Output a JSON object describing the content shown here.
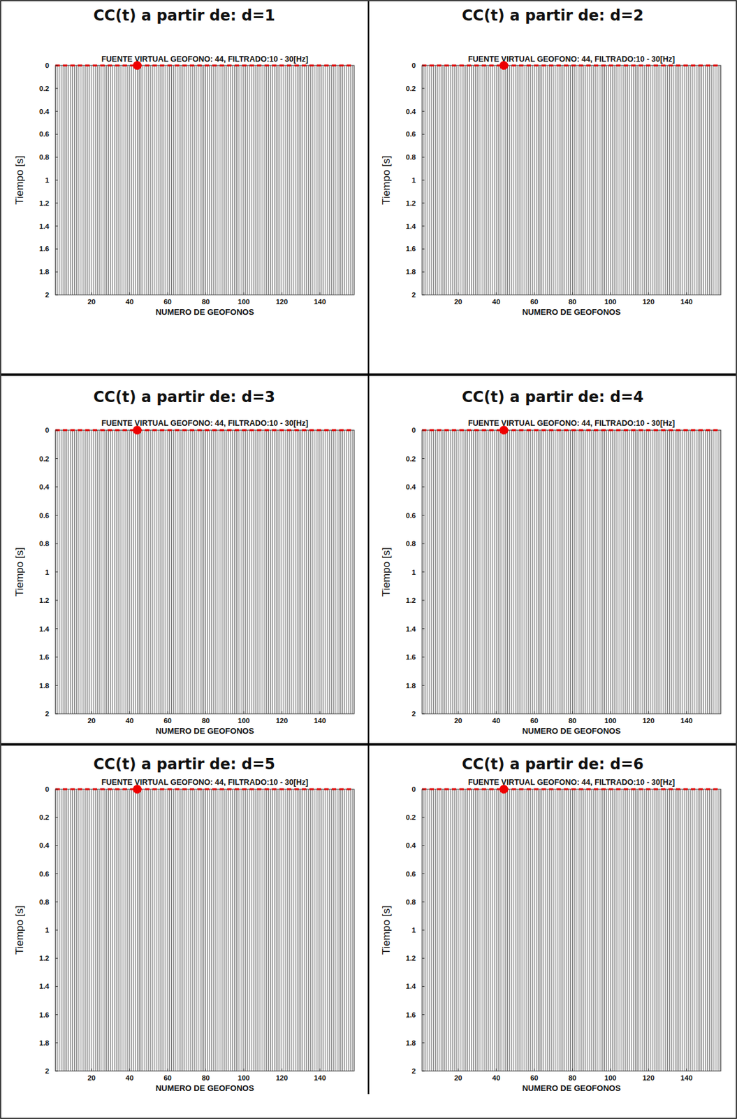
{
  "chart_data": [
    {
      "type": "wiggle",
      "title": "CC(t) a partir de: d=1",
      "subtitle": "FUENTE VIRTUAL GEOFONO: 44, FILTRADO:10 - 30[Hz]",
      "x_label": "NUMERO DE GEOFONOS",
      "y_label": "Tiempo [s]",
      "xlim": [
        1,
        158
      ],
      "ylim": [
        0,
        2
      ],
      "xticks": [
        20,
        40,
        60,
        80,
        100,
        120,
        140
      ],
      "yticks": [
        0,
        0.2,
        0.4,
        0.6,
        0.8,
        1,
        1.2,
        1.4,
        1.6,
        1.8,
        2
      ],
      "source_geophone": 44
    },
    {
      "type": "wiggle",
      "title": "CC(t) a partir de: d=2",
      "subtitle": "FUENTE VIRTUAL GEOFONO: 44, FILTRADO:10 - 30[Hz]",
      "x_label": "NUMERO DE GEOFONOS",
      "y_label": "Tiempo [s]",
      "xlim": [
        1,
        158
      ],
      "ylim": [
        0,
        2
      ],
      "xticks": [
        20,
        40,
        60,
        80,
        100,
        120,
        140
      ],
      "yticks": [
        0,
        0.2,
        0.4,
        0.6,
        0.8,
        1,
        1.2,
        1.4,
        1.6,
        1.8,
        2
      ],
      "source_geophone": 44
    },
    {
      "type": "wiggle",
      "title": "CC(t) a partir de: d=3",
      "subtitle": "FUENTE VIRTUAL GEOFONO: 44, FILTRADO:10 - 30[Hz]",
      "x_label": "NUMERO DE GEOFONOS",
      "y_label": "Tiempo [s]",
      "xlim": [
        1,
        158
      ],
      "ylim": [
        0,
        2
      ],
      "xticks": [
        20,
        40,
        60,
        80,
        100,
        120,
        140
      ],
      "yticks": [
        0,
        0.2,
        0.4,
        0.6,
        0.8,
        1,
        1.2,
        1.4,
        1.6,
        1.8,
        2
      ],
      "source_geophone": 44
    },
    {
      "type": "wiggle",
      "title": "CC(t) a partir de: d=4",
      "subtitle": "FUENTE VIRTUAL GEOFONO: 44, FILTRADO:10 - 30[Hz]",
      "x_label": "NUMERO DE GEOFONOS",
      "y_label": "Tiempo [s]",
      "xlim": [
        1,
        158
      ],
      "ylim": [
        0,
        2
      ],
      "xticks": [
        20,
        40,
        60,
        80,
        100,
        120,
        140
      ],
      "yticks": [
        0,
        0.2,
        0.4,
        0.6,
        0.8,
        1,
        1.2,
        1.4,
        1.6,
        1.8,
        2
      ],
      "source_geophone": 44
    },
    {
      "type": "wiggle",
      "title": "CC(t) a partir de: d=5",
      "subtitle": "FUENTE VIRTUAL GEOFONO: 44, FILTRADO:10 - 30[Hz]",
      "x_label": "NUMERO DE GEOFONOS",
      "y_label": "Tiempo [s]",
      "xlim": [
        1,
        158
      ],
      "ylim": [
        0,
        2
      ],
      "xticks": [
        20,
        40,
        60,
        80,
        100,
        120,
        140
      ],
      "yticks": [
        0,
        0.2,
        0.4,
        0.6,
        0.8,
        1,
        1.2,
        1.4,
        1.6,
        1.8,
        2
      ],
      "source_geophone": 44
    },
    {
      "type": "wiggle",
      "title": "CC(t) a partir de: d=6",
      "subtitle": "FUENTE VIRTUAL GEOFONO: 44, FILTRADO:10 - 30[Hz]",
      "x_label": "NUMERO DE GEOFONOS",
      "y_label": "Tiempo [s]",
      "xlim": [
        1,
        158
      ],
      "ylim": [
        0,
        2
      ],
      "xticks": [
        20,
        40,
        60,
        80,
        100,
        120,
        140
      ],
      "yticks": [
        0,
        0.2,
        0.4,
        0.6,
        0.8,
        1,
        1.2,
        1.4,
        1.6,
        1.8,
        2
      ],
      "source_geophone": 44
    }
  ]
}
